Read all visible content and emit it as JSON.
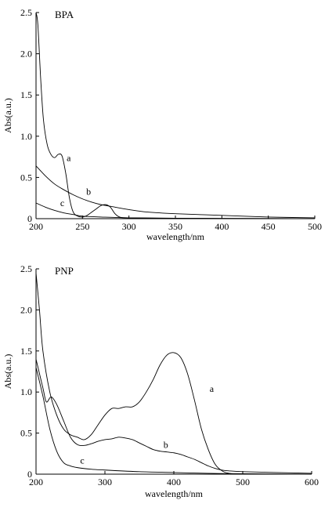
{
  "chart_data": [
    {
      "type": "line",
      "title": "BPA",
      "xlabel": "wavelength/nm",
      "ylabel": "Abs(a.u.)",
      "xlim": [
        200,
        500
      ],
      "ylim": [
        0,
        2.5
      ],
      "x_ticks": [
        200,
        250,
        300,
        350,
        400,
        450,
        500
      ],
      "y_ticks": [
        0,
        0.5,
        1.0,
        1.5,
        2.0,
        2.5
      ],
      "x_tick_labels": [
        "200",
        "250",
        "300",
        "350",
        "400",
        "450",
        "500"
      ],
      "y_tick_labels": [
        "0",
        "0.5",
        "1.0",
        "1.5",
        "2.0",
        "2.5"
      ],
      "grid": false,
      "series": [
        {
          "name": "a",
          "x": [
            200,
            202,
            205,
            208,
            212,
            216,
            220,
            224,
            228,
            232,
            236,
            240,
            245,
            250,
            255,
            260,
            265,
            270,
            275,
            280,
            285,
            290,
            300,
            350,
            400,
            500
          ],
          "y": [
            2.5,
            2.35,
            1.7,
            1.2,
            0.9,
            0.78,
            0.74,
            0.78,
            0.76,
            0.55,
            0.25,
            0.08,
            0.03,
            0.02,
            0.04,
            0.08,
            0.12,
            0.16,
            0.17,
            0.14,
            0.06,
            0.02,
            0.01,
            0.005,
            0.003,
            0.0
          ]
        },
        {
          "name": "b",
          "x": [
            200,
            210,
            220,
            230,
            240,
            250,
            260,
            270,
            280,
            300,
            320,
            350,
            400,
            450,
            500
          ],
          "y": [
            0.64,
            0.52,
            0.42,
            0.35,
            0.29,
            0.24,
            0.2,
            0.17,
            0.15,
            0.11,
            0.08,
            0.06,
            0.04,
            0.02,
            0.01
          ]
        },
        {
          "name": "c",
          "x": [
            200,
            210,
            220,
            230,
            240,
            250,
            270,
            300,
            350,
            400,
            500
          ],
          "y": [
            0.19,
            0.14,
            0.1,
            0.07,
            0.05,
            0.03,
            0.02,
            0.01,
            0.005,
            0.003,
            0.0
          ]
        }
      ],
      "annotations": [
        {
          "text": "a",
          "x": 233,
          "y": 0.7
        },
        {
          "text": "b",
          "x": 254,
          "y": 0.29
        },
        {
          "text": "c",
          "x": 226,
          "y": 0.15
        }
      ]
    },
    {
      "type": "line",
      "title": "PNP",
      "xlabel": "wavelength/nm",
      "ylabel": "Abs(a.u.)",
      "xlim": [
        200,
        600
      ],
      "ylim": [
        0,
        2.5
      ],
      "x_ticks": [
        200,
        300,
        400,
        500,
        600
      ],
      "y_ticks": [
        0,
        0.5,
        1.0,
        1.5,
        2.0,
        2.5
      ],
      "x_tick_labels": [
        "200",
        "300",
        "400",
        "500",
        "600"
      ],
      "y_tick_labels": [
        "0",
        "0.5",
        "1.0",
        "1.5",
        "2.0",
        "2.5"
      ],
      "grid": false,
      "series": [
        {
          "name": "a",
          "x": [
            200,
            205,
            210,
            220,
            230,
            240,
            250,
            260,
            270,
            280,
            290,
            300,
            310,
            320,
            330,
            340,
            350,
            360,
            370,
            380,
            390,
            400,
            410,
            420,
            430,
            440,
            450,
            460,
            470,
            480,
            500,
            550,
            600
          ],
          "y": [
            2.45,
            2.0,
            1.5,
            1.0,
            0.72,
            0.55,
            0.48,
            0.45,
            0.42,
            0.48,
            0.6,
            0.72,
            0.8,
            0.8,
            0.82,
            0.82,
            0.88,
            1.0,
            1.15,
            1.33,
            1.45,
            1.48,
            1.42,
            1.22,
            0.9,
            0.55,
            0.3,
            0.12,
            0.04,
            0.01,
            0.0,
            0.0,
            0.0
          ]
        },
        {
          "name": "b",
          "x": [
            200,
            210,
            215,
            222,
            230,
            240,
            250,
            260,
            270,
            280,
            290,
            300,
            310,
            320,
            330,
            340,
            350,
            360,
            370,
            380,
            390,
            400,
            410,
            420,
            430,
            440,
            450,
            460,
            470,
            480,
            500,
            550,
            600
          ],
          "y": [
            1.4,
            1.05,
            0.88,
            0.94,
            0.85,
            0.65,
            0.45,
            0.36,
            0.35,
            0.37,
            0.4,
            0.42,
            0.43,
            0.45,
            0.44,
            0.42,
            0.38,
            0.34,
            0.3,
            0.28,
            0.27,
            0.26,
            0.24,
            0.21,
            0.18,
            0.14,
            0.1,
            0.07,
            0.05,
            0.04,
            0.03,
            0.02,
            0.01
          ]
        },
        {
          "name": "c",
          "x": [
            200,
            210,
            220,
            230,
            240,
            250,
            260,
            280,
            300,
            350,
            400,
            450,
            500,
            550,
            600
          ],
          "y": [
            1.3,
            0.95,
            0.55,
            0.28,
            0.14,
            0.1,
            0.08,
            0.06,
            0.05,
            0.03,
            0.02,
            0.01,
            0.005,
            0.003,
            0.0
          ]
        }
      ],
      "annotations": [
        {
          "text": "a",
          "x": 452,
          "y": 1.0
        },
        {
          "text": "b",
          "x": 385,
          "y": 0.32
        },
        {
          "text": "c",
          "x": 264,
          "y": 0.13
        }
      ]
    }
  ]
}
